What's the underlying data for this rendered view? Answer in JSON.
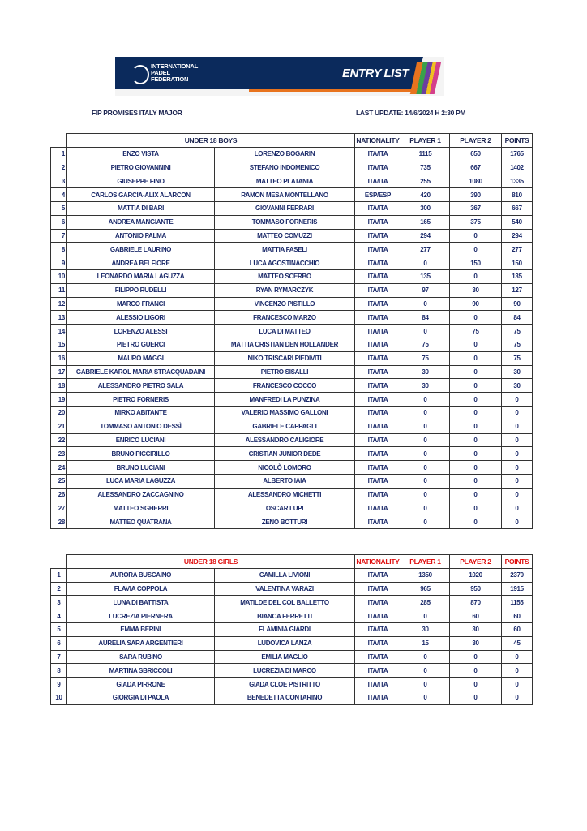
{
  "banner": {
    "org_name": [
      "INTERNATIONAL",
      "PADEL",
      "FEDERATION"
    ],
    "title": "ENTRY LIST",
    "colors": {
      "navy": "#0b2a5c",
      "orange": "#e8731e"
    }
  },
  "event_name": "FIP PROMISES ITALY MAJOR",
  "last_update": "LAST UPDATE: 14/6/2024 H 2:30 PM",
  "columns": {
    "nationality": "NATIONALITY",
    "player1": "PLAYER 1",
    "player2": "PLAYER 2",
    "points": "POINTS"
  },
  "boys": {
    "title": "UNDER 18 BOYS",
    "header_color": "#1b2450",
    "rows": [
      [
        "1",
        "ENZO VISTA",
        "LORENZO BOGARIN",
        "ITA/ITA",
        "1115",
        "650",
        "1765"
      ],
      [
        "2",
        "PIETRO GIOVANNINI",
        "STEFANO INDOMENICO",
        "ITA/ITA",
        "735",
        "667",
        "1402"
      ],
      [
        "3",
        "GIUSEPPE FINO",
        "MATTEO PLATANIA",
        "ITA/ITA",
        "255",
        "1080",
        "1335"
      ],
      [
        "4",
        "CARLOS GARCIA-ALIX ALARCON",
        "RAMON MESA MONTELLANO",
        "ESP/ESP",
        "420",
        "390",
        "810"
      ],
      [
        "5",
        "MATTIA DI BARI",
        "GIOVANNI FERRARI",
        "ITA/ITA",
        "300",
        "367",
        "667"
      ],
      [
        "6",
        "ANDREA MANGIANTE",
        "TOMMASO FORNERIS",
        "ITA/ITA",
        "165",
        "375",
        "540"
      ],
      [
        "7",
        "ANTONIO PALMA",
        "MATTEO COMUZZI",
        "ITA/ITA",
        "294",
        "0",
        "294"
      ],
      [
        "8",
        "GABRIELE LAURINO",
        "MATTIA FASELI",
        "ITA/ITA",
        "277",
        "0",
        "277"
      ],
      [
        "9",
        "ANDREA BELFIORE",
        "LUCA AGOSTINACCHIO",
        "ITA/ITA",
        "0",
        "150",
        "150"
      ],
      [
        "10",
        "LEONARDO MARIA LAGUZZA",
        "MATTEO SCERBO",
        "ITA/ITA",
        "135",
        "0",
        "135"
      ],
      [
        "11",
        "FILIPPO RUDELLI",
        "RYAN RYMARCZYK",
        "ITA/ITA",
        "97",
        "30",
        "127"
      ],
      [
        "12",
        "MARCO FRANCI",
        "VINCENZO PISTILLO",
        "ITA/ITA",
        "0",
        "90",
        "90"
      ],
      [
        "13",
        "ALESSIO LIGORI",
        "FRANCESCO MARZO",
        "ITA/ITA",
        "84",
        "0",
        "84"
      ],
      [
        "14",
        "LORENZO ALESSI",
        "LUCA DI MATTEO",
        "ITA/ITA",
        "0",
        "75",
        "75"
      ],
      [
        "15",
        "PIETRO GUERCI",
        "MATTIA CRISTIAN DEN HOLLANDER",
        "ITA/ITA",
        "75",
        "0",
        "75"
      ],
      [
        "16",
        "MAURO MAGGI",
        "NIKO TRISCARI PIEDIVITI",
        "ITA/ITA",
        "75",
        "0",
        "75"
      ],
      [
        "17",
        "GABRIELE KAROL MARIA STRACQUADAINI",
        "PIETRO SISALLI",
        "ITA/ITA",
        "30",
        "0",
        "30"
      ],
      [
        "18",
        "ALESSANDRO PIETRO SALA",
        "FRANCESCO COCCO",
        "ITA/ITA",
        "30",
        "0",
        "30"
      ],
      [
        "19",
        "PIETRO FORNERIS",
        "MANFREDI LA PUNZINA",
        "ITA/ITA",
        "0",
        "0",
        "0"
      ],
      [
        "20",
        "MIRKO ABITANTE",
        "VALERIO MASSIMO GALLONI",
        "ITA/ITA",
        "0",
        "0",
        "0"
      ],
      [
        "21",
        "TOMMASO ANTONIO DESSÌ",
        "GABRIELE CAPPAGLI",
        "ITA/ITA",
        "0",
        "0",
        "0"
      ],
      [
        "22",
        "ENRICO LUCIANI",
        "ALESSANDRO CALIGIORE",
        "ITA/ITA",
        "0",
        "0",
        "0"
      ],
      [
        "23",
        "BRUNO PICCIRILLO",
        "CRISTIAN JUNIOR DEDE",
        "ITA/ITA",
        "0",
        "0",
        "0"
      ],
      [
        "24",
        "BRUNO LUCIANI",
        "NICOLÒ LOMORO",
        "ITA/ITA",
        "0",
        "0",
        "0"
      ],
      [
        "25",
        "LUCA MARIA LAGUZZA",
        "ALBERTO IAIA",
        "ITA/ITA",
        "0",
        "0",
        "0"
      ],
      [
        "26",
        "ALESSANDRO ZACCAGNINO",
        "ALESSANDRO MICHETTI",
        "ITA/ITA",
        "0",
        "0",
        "0"
      ],
      [
        "27",
        "MATTEO SGHERRI",
        "OSCAR LUPI",
        "ITA/ITA",
        "0",
        "0",
        "0"
      ],
      [
        "28",
        "MATTEO QUATRANA",
        "ZENO BOTTURI",
        "ITA/ITA",
        "0",
        "0",
        "0"
      ]
    ]
  },
  "girls": {
    "title": "UNDER 18 GIRLS",
    "header_color": "#e01010",
    "rows": [
      [
        "1",
        "AURORA BUSCAINO",
        "CAMILLA LIVIONI",
        "ITA/ITA",
        "1350",
        "1020",
        "2370"
      ],
      [
        "2",
        "FLAVIA COPPOLA",
        "VALENTINA VARAZI",
        "ITA/ITA",
        "965",
        "950",
        "1915"
      ],
      [
        "3",
        "LUNA DI BATTISTA",
        "MATILDE DEL COL BALLETTO",
        "ITA/ITA",
        "285",
        "870",
        "1155"
      ],
      [
        "4",
        "LUCREZIA PIERNERA",
        "BIANCA FERRETTI",
        "ITA/ITA",
        "0",
        "60",
        "60"
      ],
      [
        "5",
        "EMMA BERINI",
        "FLAMINIA GIARDI",
        "ITA/ITA",
        "30",
        "30",
        "60"
      ],
      [
        "6",
        "AURELIA SARA ARGENTIERI",
        "LUDOVICA LANZA",
        "ITA/ITA",
        "15",
        "30",
        "45"
      ],
      [
        "7",
        "SARA RUBINO",
        "EMILIA MAGLIO",
        "ITA/ITA",
        "0",
        "0",
        "0"
      ],
      [
        "8",
        "MARTINA SBRICCOLI",
        "LUCREZIA DI MARCO",
        "ITA/ITA",
        "0",
        "0",
        "0"
      ],
      [
        "9",
        "GIADA PIRRONE",
        "GIADA CLOE PISTRITTO",
        "ITA/ITA",
        "0",
        "0",
        "0"
      ],
      [
        "10",
        "GIORGIA DI PAOLA",
        "BENEDETTA CONTARINO",
        "ITA/ITA",
        "0",
        "0",
        "0"
      ]
    ]
  }
}
